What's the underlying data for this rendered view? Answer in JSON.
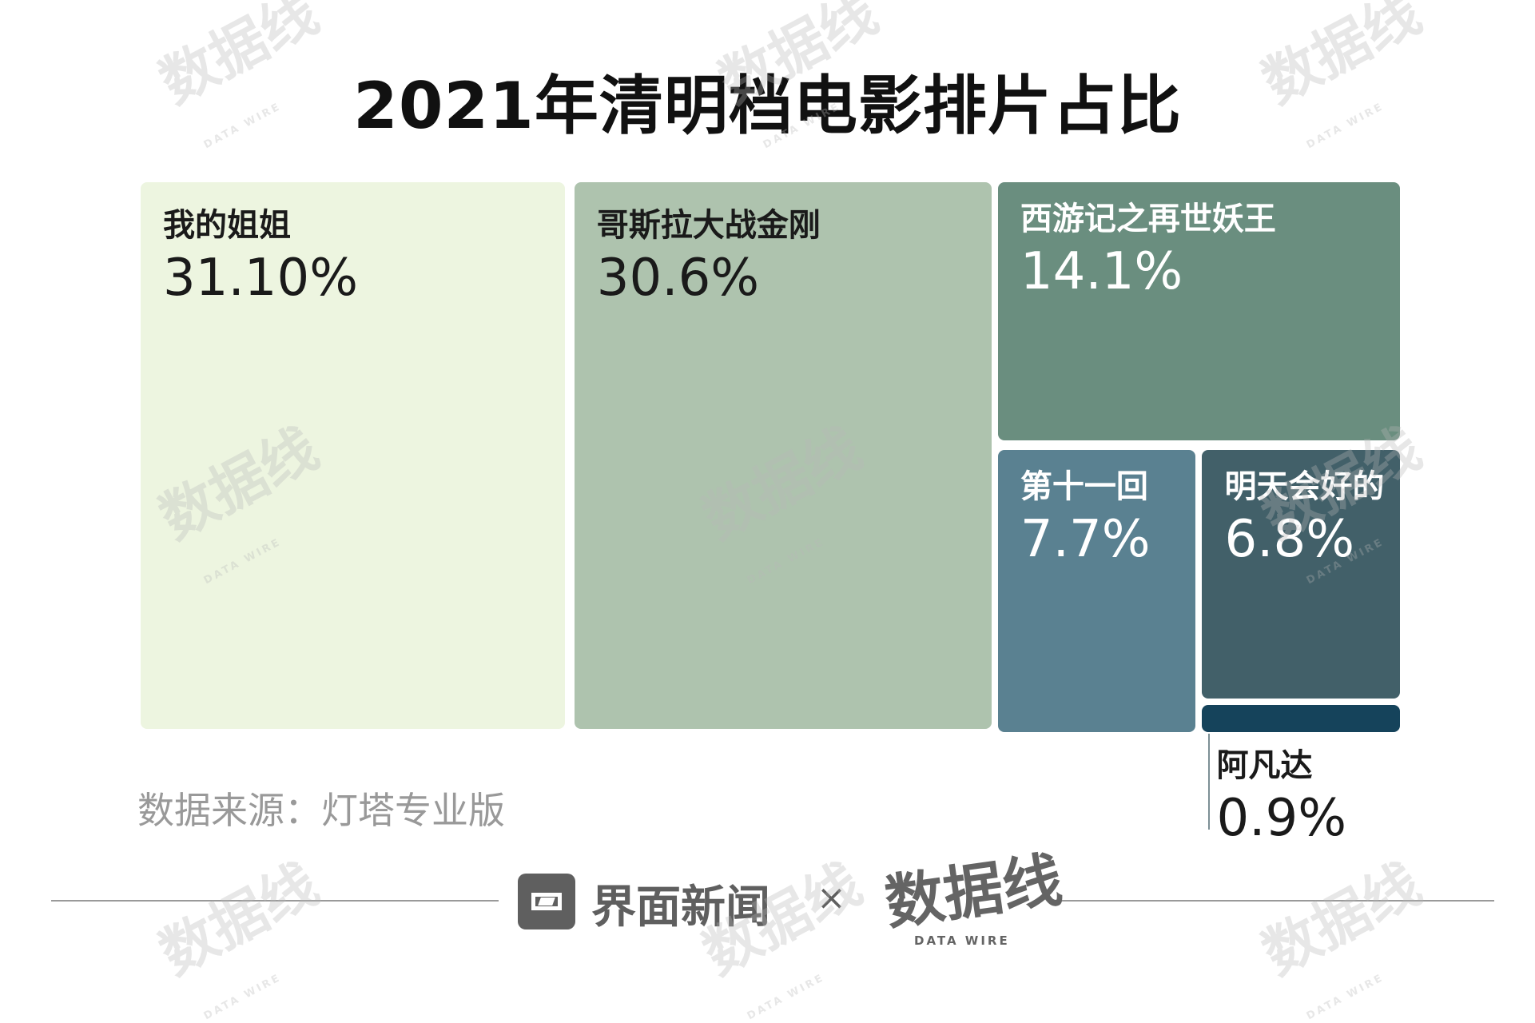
{
  "chart_data": {
    "type": "treemap",
    "title": "2021年清明档电影排片占比",
    "unit": "%",
    "items": [
      {
        "name": "我的姐姐",
        "value": 31.1,
        "label": "31.10%",
        "color": "#edf5e0"
      },
      {
        "name": "哥斯拉大战金刚",
        "value": 30.6,
        "label": "30.6%",
        "color": "#aec3ae"
      },
      {
        "name": "西游记之再世妖王",
        "value": 14.1,
        "label": "14.1%",
        "color": "#6a8e7f"
      },
      {
        "name": "第十一回",
        "value": 7.7,
        "label": "7.7%",
        "color": "#5a8191"
      },
      {
        "name": "明天会好的",
        "value": 6.8,
        "label": "6.8%",
        "color": "#426069"
      },
      {
        "name": "阿凡达",
        "value": 0.9,
        "label": "0.9%",
        "color": "#15435b"
      }
    ]
  },
  "source": "数据来源：灯塔专业版",
  "footer": {
    "brand": "界面新闻",
    "times": "×",
    "logo_cn": "数据线",
    "logo_en": "DATA WIRE"
  },
  "watermark": {
    "cn": "数据线",
    "en": "DATA WIRE"
  },
  "colors": {
    "label_dark": "#1a1a1a",
    "label_light": "#ffffff",
    "footer_gray": "#5f5f5f"
  }
}
